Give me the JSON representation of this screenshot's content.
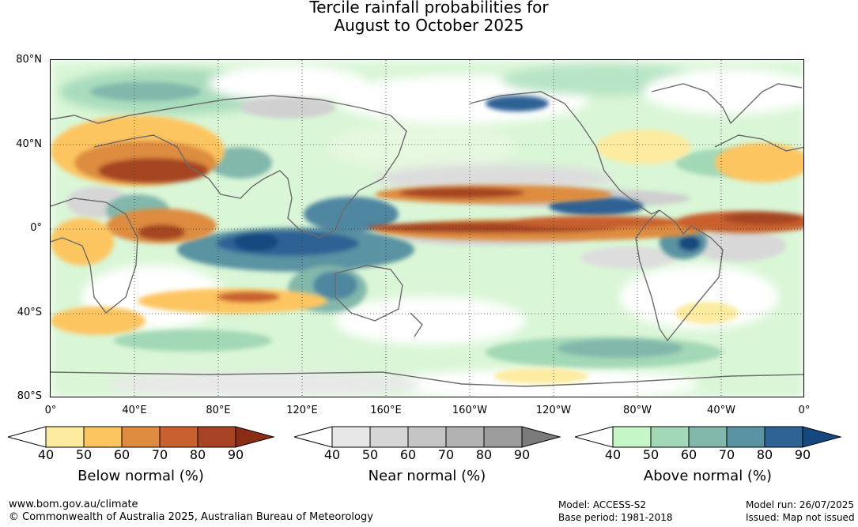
{
  "title": {
    "line1": "Tercile rainfall probabilities for",
    "line2": "August to October 2025"
  },
  "map": {
    "lat_labels": [
      "80°N",
      "40°N",
      "0°",
      "40°S",
      "80°S"
    ],
    "lon_labels": [
      "0°",
      "40°E",
      "80°E",
      "120°E",
      "160°E",
      "160°W",
      "120°W",
      "80°W",
      "40°W",
      "0°"
    ],
    "grid": "dotted"
  },
  "legends": [
    {
      "name": "below",
      "title": "Below normal (%)",
      "ticks": [
        "40",
        "50",
        "60",
        "70",
        "80",
        "90"
      ],
      "colors": [
        "#ffffff",
        "#fdeba0",
        "#fdc560",
        "#de8c40",
        "#c8602f",
        "#a64424",
        "#8a2d14"
      ]
    },
    {
      "name": "near",
      "title": "Near normal (%)",
      "ticks": [
        "40",
        "50",
        "60",
        "70",
        "80",
        "90"
      ],
      "colors": [
        "#ffffff",
        "#e7e7e7",
        "#d6d6d6",
        "#c5c5c5",
        "#b2b2b2",
        "#9d9d9d",
        "#7b7b7b"
      ]
    },
    {
      "name": "above",
      "title": "Above normal (%)",
      "ticks": [
        "40",
        "50",
        "60",
        "70",
        "80",
        "90"
      ],
      "colors": [
        "#ffffff",
        "#c5f6c8",
        "#a3d8b6",
        "#82b7ac",
        "#5a93a2",
        "#2f6295",
        "#13497f"
      ]
    }
  ],
  "footer": {
    "website": "www.bom.gov.au/climate",
    "copyright": "© Commonwealth of Australia 2025, Australian Bureau of Meteorology",
    "model": "Model: ACCESS-S2",
    "base_period": "Base period: 1981-2018",
    "model_run": "Model run: 26/07/2025",
    "issued": "Issued: Map not issued"
  }
}
